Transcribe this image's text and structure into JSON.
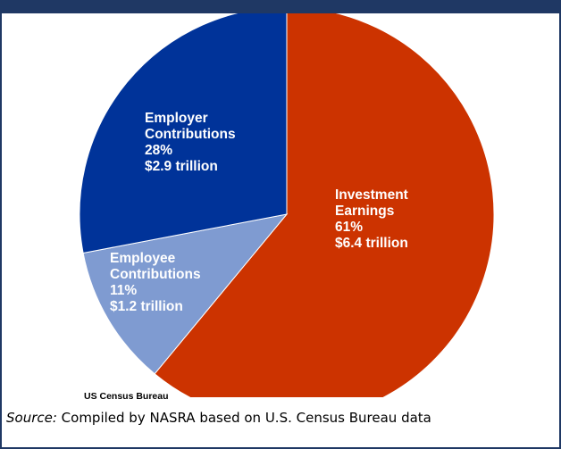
{
  "chart_data": {
    "type": "pie",
    "slices": [
      {
        "lines": [
          "Investment",
          "Earnings",
          "61%",
          "$6.4 trillion"
        ],
        "percent": 61,
        "value_trillion": 6.4,
        "color": "#cc3300"
      },
      {
        "lines": [
          "Employee",
          "Contributions",
          "11%",
          "$1.2 trillion"
        ],
        "percent": 11,
        "value_trillion": 1.2,
        "color": "#7f9bd1"
      },
      {
        "lines": [
          "Employer",
          "Contributions",
          "28%",
          "$2.9 trillion"
        ],
        "percent": 28,
        "value_trillion": 2.9,
        "color": "#003399"
      }
    ],
    "start": "12 o'clock",
    "direction": "clockwise",
    "legend": "none"
  },
  "credit": "US Census Bureau",
  "source": {
    "prefix": "Source:",
    "text": " Compiled by NASRA based on U.S. Census Bureau data"
  }
}
